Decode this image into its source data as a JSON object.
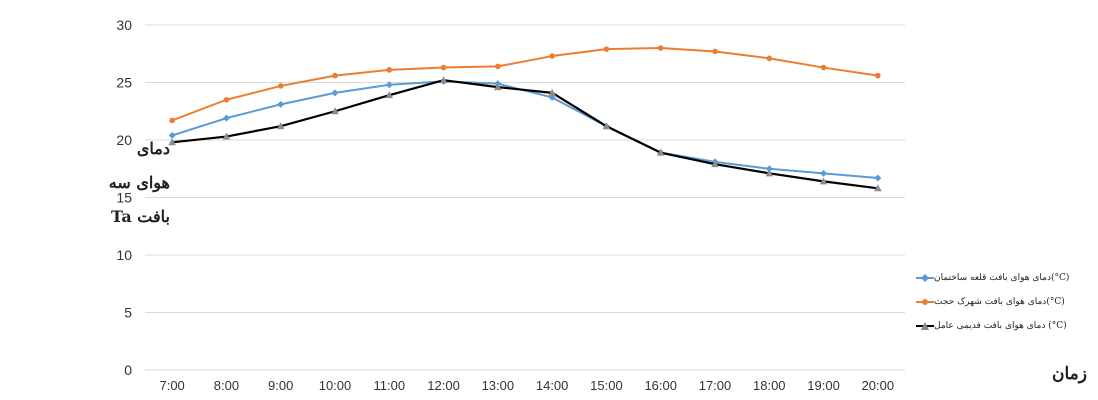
{
  "chart_data": {
    "type": "line",
    "categories": [
      "7:00",
      "8:00",
      "9:00",
      "10:00",
      "11:00",
      "12:00",
      "13:00",
      "14:00",
      "15:00",
      "16:00",
      "17:00",
      "18:00",
      "19:00",
      "20:00"
    ],
    "ylim": [
      0,
      30
    ],
    "yticks": [
      0,
      5,
      10,
      15,
      20,
      25,
      30
    ],
    "grid": true,
    "legend_position": "right",
    "ylabel_lines": [
      "دمای",
      "هوای سه",
      "بافت Ta"
    ],
    "xlabel": "زمان",
    "series": [
      {
        "name": "دمای هوای بافت قلعه ساختمان(°C)",
        "color": "#5b9bd5",
        "marker": "diamond",
        "values": [
          20.4,
          21.9,
          23.1,
          24.1,
          24.8,
          25.1,
          24.9,
          23.7,
          21.2,
          18.9,
          18.1,
          17.5,
          17.1,
          16.7
        ]
      },
      {
        "name": "دمای هوای بافت شهرک حجت(°C)",
        "color": "#ed7d31",
        "marker": "circle",
        "values": [
          21.7,
          23.5,
          24.7,
          25.6,
          26.1,
          26.3,
          26.4,
          27.3,
          27.9,
          28.0,
          27.7,
          27.1,
          26.3,
          25.6
        ]
      },
      {
        "name": "دمای هوای بافت قدیمی عامل (°C)",
        "color": "#000000",
        "marker": "triangle",
        "values": [
          19.8,
          20.3,
          21.2,
          22.5,
          23.9,
          25.2,
          24.6,
          24.1,
          21.2,
          18.9,
          17.9,
          17.1,
          16.4,
          15.8
        ]
      }
    ]
  }
}
